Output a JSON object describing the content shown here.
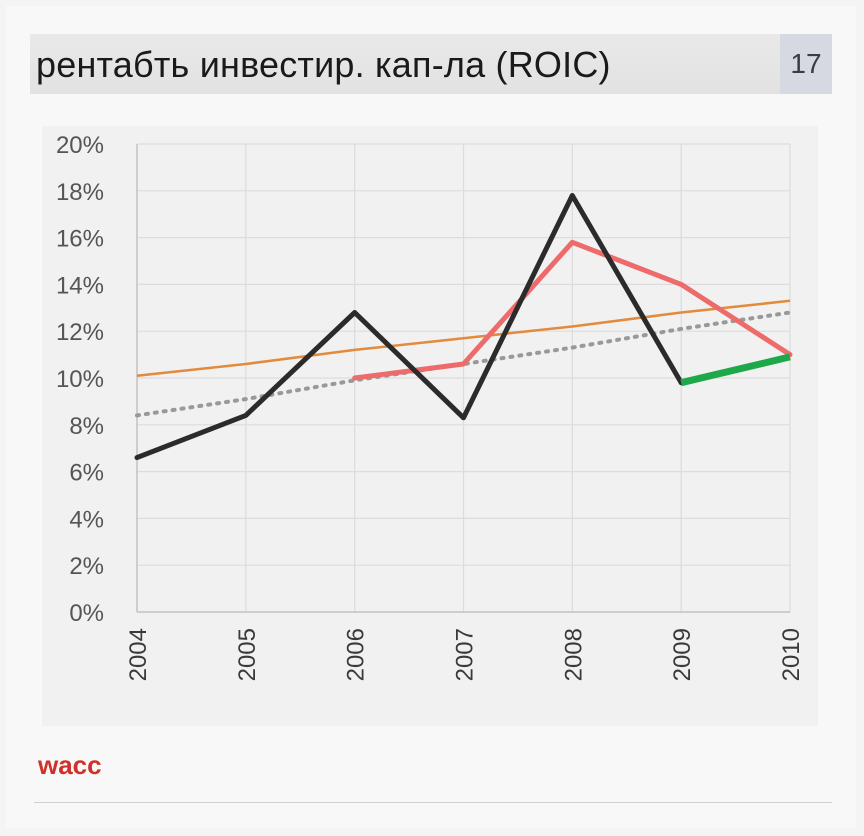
{
  "header": {
    "title": "рентабть инвестир. кап-ла (ROIC)",
    "page_number": "17"
  },
  "footer": {
    "note": "wacc"
  },
  "colors": {
    "roic": "#2b2b2b",
    "moving_avg": "#ee6b6b",
    "forecast": "#1fa84a",
    "trend": "#e38a3c",
    "trend_dotted": "#999999",
    "grid": "#dcdcdc"
  },
  "chart_data": {
    "type": "line",
    "categories": [
      "2004",
      "2005",
      "2006",
      "2007",
      "2008",
      "2009",
      "2010"
    ],
    "ylim": [
      0,
      20
    ],
    "y_ticks": [
      "0%",
      "2%",
      "4%",
      "6%",
      "8%",
      "10%",
      "12%",
      "14%",
      "16%",
      "18%",
      "20%"
    ],
    "grid": true,
    "series": [
      {
        "key": "roic",
        "values": [
          6.6,
          8.4,
          12.8,
          8.3,
          17.8,
          9.8,
          null
        ]
      },
      {
        "key": "moving_avg",
        "values": [
          null,
          null,
          10.0,
          10.6,
          15.8,
          14.0,
          11.0
        ]
      },
      {
        "key": "forecast",
        "values": [
          null,
          null,
          null,
          null,
          null,
          9.8,
          10.9
        ]
      },
      {
        "key": "trend",
        "values": [
          10.1,
          10.6,
          11.2,
          11.7,
          12.2,
          12.8,
          13.3
        ]
      },
      {
        "key": "trend_dotted",
        "values": [
          8.4,
          9.1,
          9.9,
          10.6,
          11.3,
          12.1,
          12.8
        ]
      }
    ]
  }
}
